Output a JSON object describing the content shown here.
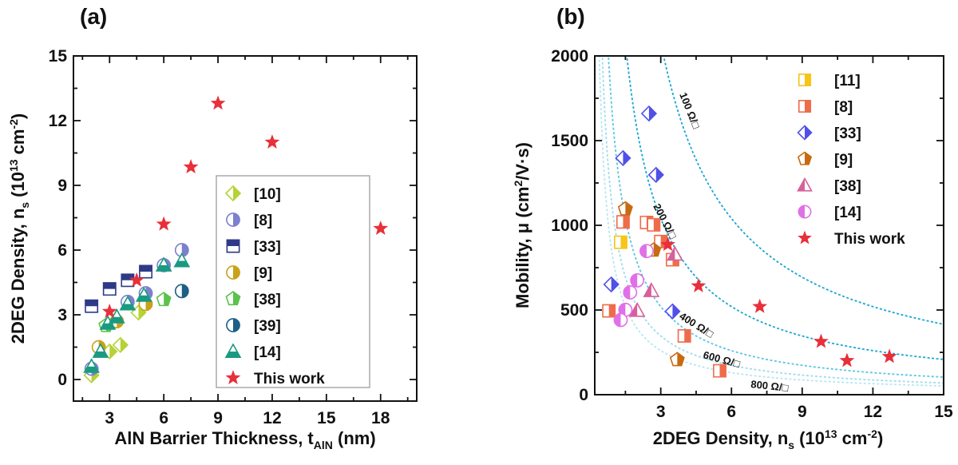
{
  "chart_data": [
    {
      "panel_label": "(a)",
      "type": "scatter",
      "xlabel": "AlN Barrier Thickness, t",
      "xlabel_sub": "AlN",
      "xlabel_tail": " (nm)",
      "ylabel": "2DEG Density, n",
      "ylabel_sub": "s",
      "ylabel_tail": " (10",
      "ylabel_sup": "13",
      "ylabel_tail2": " cm",
      "ylabel_sup2": "-2",
      "ylabel_end": ")",
      "xlim": [
        1,
        20
      ],
      "ylim": [
        -1,
        15
      ],
      "xticks": [
        3,
        6,
        9,
        12,
        15,
        18
      ],
      "yticks": [
        0,
        3,
        6,
        9,
        12,
        15
      ],
      "grid": false,
      "legend_placement": "lower-center, boxed",
      "series": [
        {
          "name": "[10]",
          "marker": "diamond",
          "half": "right",
          "color": "#b5d334",
          "x": [
            2,
            3,
            3.6,
            4.6
          ],
          "y": [
            0.2,
            1.3,
            1.6,
            3.1
          ]
        },
        {
          "name": "[8]",
          "marker": "circle",
          "half": "right",
          "color": "#7d7fcf",
          "x": [
            2,
            4,
            5,
            6,
            7
          ],
          "y": [
            0.5,
            3.6,
            4.0,
            5.3,
            6.0
          ]
        },
        {
          "name": "[33]",
          "marker": "square",
          "half": "top",
          "color": "#2e3a87",
          "x": [
            2,
            3,
            4,
            5
          ],
          "y": [
            3.4,
            4.2,
            4.6,
            5.0
          ]
        },
        {
          "name": "[9]",
          "marker": "circle",
          "half": "right",
          "color": "#c9a21a",
          "x": [
            2.4,
            3.4,
            5
          ],
          "y": [
            1.5,
            2.7,
            3.5
          ]
        },
        {
          "name": "[38]",
          "marker": "pentagon",
          "half": "right",
          "color": "#5cc24a",
          "x": [
            2.8,
            6
          ],
          "y": [
            2.5,
            3.7
          ]
        },
        {
          "name": "[39]",
          "marker": "circle",
          "half": "right",
          "color": "#1d5f86",
          "x": [
            7
          ],
          "y": [
            4.1
          ]
        },
        {
          "name": "[14]",
          "marker": "triangle",
          "half": "bottom",
          "color": "#1a9a80",
          "x": [
            2,
            2.5,
            2.9,
            3.4,
            4,
            4.9,
            6,
            7
          ],
          "y": [
            0.6,
            1.3,
            2.6,
            2.9,
            3.5,
            3.9,
            5.3,
            5.5
          ]
        },
        {
          "name": "This work",
          "marker": "star",
          "half": "full",
          "color": "#e8303a",
          "x": [
            3,
            4.5,
            6,
            7.5,
            9,
            12,
            18
          ],
          "y": [
            3.15,
            4.6,
            7.2,
            9.85,
            12.8,
            11,
            7.0
          ]
        }
      ]
    },
    {
      "panel_label": "(b)",
      "type": "scatter",
      "xlabel": "2DEG Density, n",
      "xlabel_sub": "s",
      "xlabel_tail": " (10",
      "xlabel_sup": "13",
      "xlabel_tail2": " cm",
      "xlabel_sup2": "-2",
      "xlabel_end": ")",
      "ylabel": "Mobility, μ  (cm",
      "ylabel_sup": "2",
      "ylabel_tail": "/V·s)",
      "xlim": [
        0.2,
        15
      ],
      "ylim": [
        0,
        2000
      ],
      "xticks": [
        3,
        6,
        9,
        12,
        15
      ],
      "yticks": [
        0,
        500,
        1000,
        1500,
        2000
      ],
      "grid": false,
      "legend_placement": "top-right",
      "sheet_resistance_curves": [
        {
          "label": "100 Ω/□",
          "ohm_per_sq": 100,
          "color": "#1aa6d4"
        },
        {
          "label": "200 Ω/□",
          "ohm_per_sq": 200,
          "color": "#1aa6d4"
        },
        {
          "label": "400 Ω/□",
          "ohm_per_sq": 400,
          "color": "#5cc6e2"
        },
        {
          "label": "600 Ω/□",
          "ohm_per_sq": 600,
          "color": "#9fdcef"
        },
        {
          "label": "800 Ω/□",
          "ohm_per_sq": 800,
          "color": "#b8e6f3"
        }
      ],
      "series": [
        {
          "name": "[11]",
          "marker": "square",
          "half": "right",
          "color": "#f5c518",
          "x": [
            1.3
          ],
          "y": [
            900
          ]
        },
        {
          "name": "[8]",
          "marker": "square",
          "half": "right",
          "color": "#ef6c4a",
          "x": [
            0.8,
            1.4,
            2.4,
            2.7,
            3.0,
            3.5,
            4.0,
            5.5
          ],
          "y": [
            495,
            1020,
            1017,
            1003,
            904,
            797,
            347,
            141
          ]
        },
        {
          "name": "[33]",
          "marker": "diamond",
          "half": "right",
          "color": "#5050e8",
          "x": [
            2.5,
            1.4,
            2.8,
            0.9,
            3.5
          ],
          "y": [
            1660,
            1397,
            1298,
            651,
            492
          ]
        },
        {
          "name": "[9]",
          "marker": "pentagon",
          "half": "right",
          "color": "#c86a10",
          "x": [
            1.5,
            2.7,
            3.7
          ],
          "y": [
            1096,
            853,
            206
          ]
        },
        {
          "name": "[38]",
          "marker": "triangle",
          "half": "left",
          "color": "#d6609a",
          "x": [
            3.6,
            2.6,
            2.0
          ],
          "y": [
            829,
            614,
            497
          ]
        },
        {
          "name": "[14]",
          "marker": "circle",
          "half": "left",
          "color": "#e070e8",
          "x": [
            2.4,
            2.0,
            1.7,
            1.5,
            1.3
          ],
          "y": [
            848,
            675,
            604,
            501,
            441
          ]
        },
        {
          "name": "This work",
          "marker": "star",
          "half": "full",
          "color": "#e8303a",
          "x": [
            3.3,
            4.6,
            7.2,
            9.8,
            10.9,
            12.7
          ],
          "y": [
            886,
            642,
            520,
            314,
            201,
            225
          ]
        }
      ]
    }
  ]
}
